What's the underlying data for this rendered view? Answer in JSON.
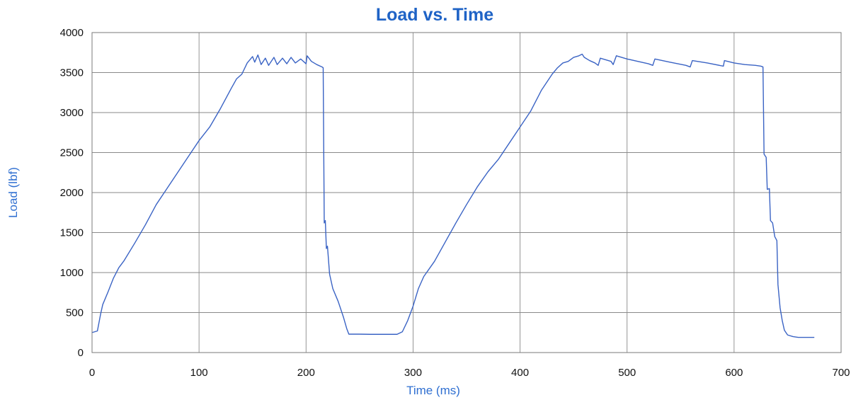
{
  "chart_data": {
    "type": "line",
    "title": "Load  vs. Time",
    "xlabel": "Time (ms)",
    "ylabel": "Load (lbf)",
    "xlim": [
      0,
      700
    ],
    "ylim": [
      0,
      4000
    ],
    "xticks": [
      0,
      100,
      200,
      300,
      400,
      500,
      600,
      700
    ],
    "yticks": [
      0,
      500,
      1000,
      1500,
      2000,
      2500,
      3000,
      3500,
      4000
    ],
    "grid": true,
    "legend": "none",
    "series": [
      {
        "color": "#3a63c4",
        "points": [
          [
            0,
            250
          ],
          [
            5,
            270
          ],
          [
            8,
            480
          ],
          [
            10,
            600
          ],
          [
            15,
            760
          ],
          [
            20,
            930
          ],
          [
            25,
            1060
          ],
          [
            30,
            1150
          ],
          [
            40,
            1370
          ],
          [
            50,
            1600
          ],
          [
            60,
            1850
          ],
          [
            70,
            2050
          ],
          [
            80,
            2250
          ],
          [
            90,
            2450
          ],
          [
            100,
            2650
          ],
          [
            110,
            2820
          ],
          [
            120,
            3050
          ],
          [
            130,
            3300
          ],
          [
            135,
            3420
          ],
          [
            140,
            3480
          ],
          [
            145,
            3620
          ],
          [
            150,
            3700
          ],
          [
            152,
            3630
          ],
          [
            155,
            3720
          ],
          [
            158,
            3600
          ],
          [
            162,
            3680
          ],
          [
            165,
            3590
          ],
          [
            170,
            3690
          ],
          [
            173,
            3600
          ],
          [
            178,
            3680
          ],
          [
            182,
            3610
          ],
          [
            186,
            3690
          ],
          [
            190,
            3620
          ],
          [
            195,
            3670
          ],
          [
            200,
            3610
          ],
          [
            201,
            3710
          ],
          [
            205,
            3640
          ],
          [
            210,
            3600
          ],
          [
            215,
            3570
          ],
          [
            216,
            3560
          ],
          [
            217,
            1620
          ],
          [
            218,
            1650
          ],
          [
            219,
            1300
          ],
          [
            220,
            1330
          ],
          [
            222,
            980
          ],
          [
            225,
            800
          ],
          [
            230,
            640
          ],
          [
            235,
            440
          ],
          [
            238,
            300
          ],
          [
            240,
            230
          ],
          [
            250,
            230
          ],
          [
            260,
            228
          ],
          [
            270,
            228
          ],
          [
            280,
            228
          ],
          [
            285,
            228
          ],
          [
            290,
            260
          ],
          [
            295,
            400
          ],
          [
            300,
            580
          ],
          [
            305,
            800
          ],
          [
            310,
            950
          ],
          [
            320,
            1140
          ],
          [
            330,
            1380
          ],
          [
            340,
            1620
          ],
          [
            350,
            1850
          ],
          [
            360,
            2070
          ],
          [
            370,
            2260
          ],
          [
            380,
            2420
          ],
          [
            390,
            2620
          ],
          [
            400,
            2820
          ],
          [
            410,
            3020
          ],
          [
            420,
            3280
          ],
          [
            430,
            3480
          ],
          [
            435,
            3560
          ],
          [
            440,
            3620
          ],
          [
            445,
            3640
          ],
          [
            450,
            3690
          ],
          [
            455,
            3710
          ],
          [
            458,
            3730
          ],
          [
            460,
            3690
          ],
          [
            465,
            3650
          ],
          [
            470,
            3620
          ],
          [
            473,
            3590
          ],
          [
            475,
            3680
          ],
          [
            480,
            3660
          ],
          [
            485,
            3640
          ],
          [
            487,
            3600
          ],
          [
            490,
            3710
          ],
          [
            500,
            3670
          ],
          [
            510,
            3640
          ],
          [
            520,
            3610
          ],
          [
            524,
            3590
          ],
          [
            526,
            3670
          ],
          [
            540,
            3630
          ],
          [
            555,
            3590
          ],
          [
            559,
            3570
          ],
          [
            561,
            3650
          ],
          [
            575,
            3620
          ],
          [
            590,
            3580
          ],
          [
            591,
            3650
          ],
          [
            600,
            3620
          ],
          [
            610,
            3600
          ],
          [
            620,
            3590
          ],
          [
            625,
            3580
          ],
          [
            627,
            3570
          ],
          [
            628,
            2480
          ],
          [
            630,
            2440
          ],
          [
            631,
            2040
          ],
          [
            633,
            2050
          ],
          [
            634,
            1650
          ],
          [
            636,
            1620
          ],
          [
            638,
            1450
          ],
          [
            640,
            1400
          ],
          [
            641,
            850
          ],
          [
            643,
            560
          ],
          [
            645,
            400
          ],
          [
            647,
            280
          ],
          [
            650,
            220
          ],
          [
            655,
            200
          ],
          [
            660,
            190
          ],
          [
            675,
            190
          ]
        ]
      }
    ]
  }
}
